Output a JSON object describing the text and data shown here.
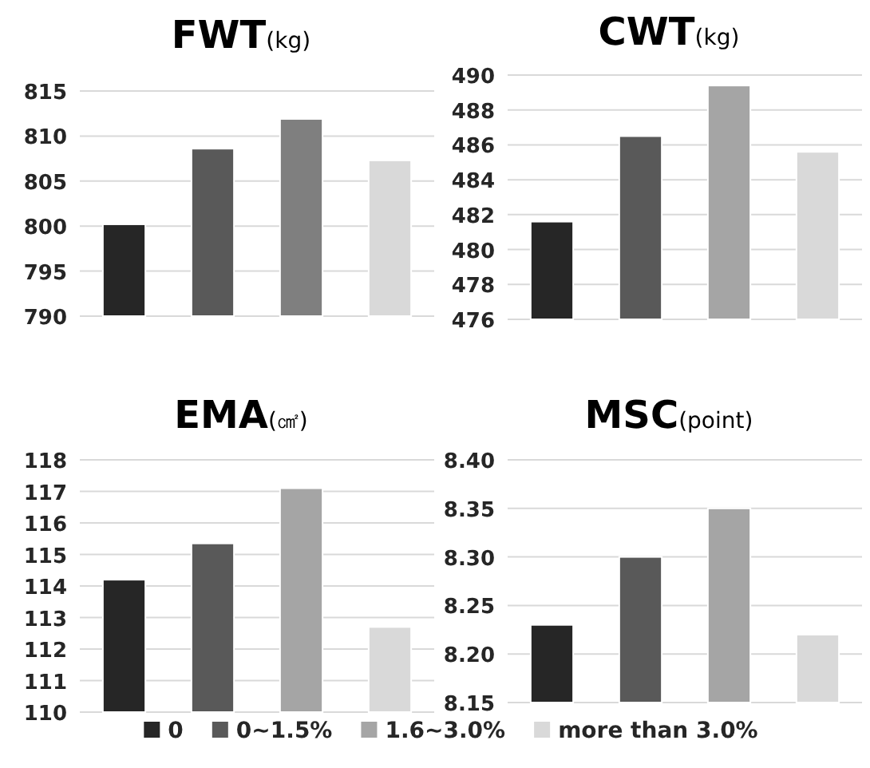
{
  "chart_data": [
    {
      "type": "bar",
      "title": "**FWT**(kg)",
      "categories": [
        null
      ],
      "grid": "y",
      "ylim": [
        790,
        815
      ],
      "yticks": [
        790,
        795,
        800,
        805,
        810,
        815
      ],
      "tick_labels": "y",
      "series": [
        {
          "color": "#262626",
          "values": [
            800.2
          ]
        },
        {
          "color": "#595959",
          "values": [
            808.6
          ]
        },
        {
          "color": "#7f7f7f",
          "values": [
            811.9
          ]
        },
        {
          "color": "#d9d9d9",
          "values": [
            807.3
          ]
        }
      ]
    },
    {
      "type": "bar",
      "title": "**CWT**(kg)",
      "categories": [
        null
      ],
      "grid": "y",
      "ylim": [
        476,
        490
      ],
      "yticks": [
        476,
        478,
        480,
        482,
        484,
        486,
        488,
        490
      ],
      "tick_labels": "y",
      "series": [
        {
          "color": "#262626",
          "values": [
            481.6
          ]
        },
        {
          "color": "#595959",
          "values": [
            486.5
          ]
        },
        {
          "color": "#a5a5a5",
          "values": [
            489.4
          ]
        },
        {
          "color": "#d9d9d9",
          "values": [
            485.6
          ]
        }
      ]
    },
    {
      "type": "bar",
      "title": "**EMA**(㎠)",
      "categories": [
        null
      ],
      "grid": "y",
      "ylim": [
        110,
        118
      ],
      "yticks": [
        110,
        111,
        112,
        113,
        114,
        115,
        116,
        117,
        118
      ],
      "tick_labels": "y",
      "legend": "bottom",
      "series": [
        {
          "name": "0",
          "color": "#262626",
          "values": [
            114.2
          ]
        },
        {
          "name": "0~1.5%",
          "color": "#595959",
          "values": [
            115.35
          ]
        },
        {
          "name": "1.6~3.0%",
          "color": "#a5a5a5",
          "values": [
            117.1
          ]
        },
        {
          "name": "more than 3.0%",
          "color": "#d9d9d9",
          "values": [
            112.7
          ]
        }
      ]
    },
    {
      "type": "bar",
      "title": "**MSC**(point)",
      "categories": [
        null
      ],
      "grid": "y",
      "ylim": [
        8.15,
        8.4
      ],
      "yticks": [
        {
          "value": 8.15,
          "label": "8.15"
        },
        {
          "value": 8.2,
          "label": "8.20"
        },
        {
          "value": 8.25,
          "label": "8.25"
        },
        {
          "value": 8.3,
          "label": "8.30"
        },
        {
          "value": 8.35,
          "label": "8.35"
        },
        {
          "value": 8.4,
          "label": "8.40"
        }
      ],
      "tick_labels": "y",
      "series": [
        {
          "color": "#262626",
          "values": [
            8.23
          ]
        },
        {
          "color": "#595959",
          "values": [
            8.3
          ]
        },
        {
          "color": "#a5a5a5",
          "values": [
            8.35
          ]
        },
        {
          "color": "#d9d9d9",
          "values": [
            8.22
          ]
        }
      ]
    }
  ]
}
